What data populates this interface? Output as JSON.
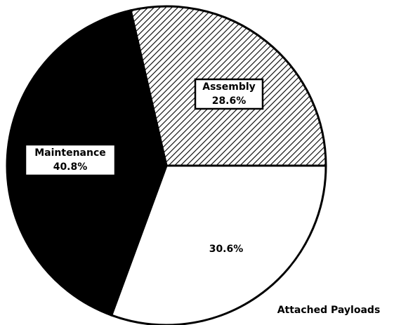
{
  "chart_data": {
    "type": "pie",
    "categories": [
      "Assembly",
      "Attached Payloads",
      "Maintenance"
    ],
    "values": [
      28.6,
      30.6,
      40.8
    ],
    "value_labels": [
      "28.6%",
      "30.6%",
      "40.8%"
    ],
    "colors": [
      "#ffffff",
      "#ffffff",
      "#000000"
    ],
    "hatched": [
      true,
      false,
      false
    ]
  }
}
